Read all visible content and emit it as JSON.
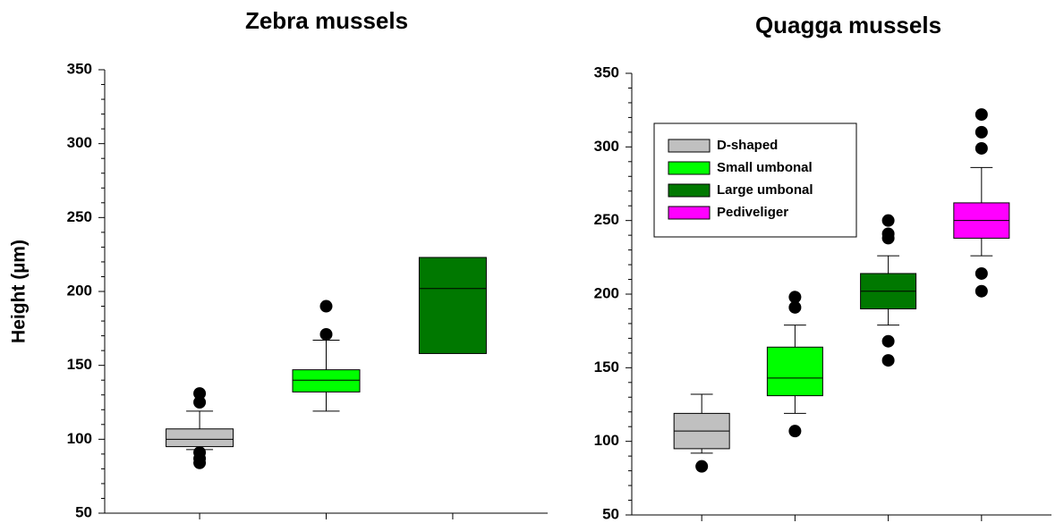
{
  "chart_data": [
    {
      "type": "box",
      "title": "Zebra mussels",
      "ylabel": "Height (µm)",
      "ylim": [
        50,
        350
      ],
      "yticks": [
        50,
        100,
        150,
        200,
        250,
        300,
        350
      ],
      "boxes": [
        {
          "color": "#c0c0c0",
          "low": 93,
          "q1": 95,
          "median": 100,
          "q3": 107,
          "high": 119,
          "outliers": [
            131,
            125,
            91,
            87,
            84
          ]
        },
        {
          "color": "#00ff00",
          "low": 119,
          "q1": 132,
          "median": 140,
          "q3": 147,
          "high": 167,
          "outliers": [
            190,
            171
          ]
        },
        {
          "color": "#007800",
          "low": null,
          "q1": 158,
          "median": 202,
          "q3": 223,
          "high": null,
          "outliers": []
        }
      ]
    },
    {
      "type": "box",
      "title": "Quagga mussels",
      "ylim": [
        50,
        350
      ],
      "yticks": [
        50,
        100,
        150,
        200,
        250,
        300,
        350
      ],
      "categories": [
        "D-shaped",
        "Small umbonal",
        "Large umbonal",
        "Pediveliger"
      ],
      "boxes": [
        {
          "color": "#c0c0c0",
          "low": 92,
          "q1": 95,
          "median": 107,
          "q3": 119,
          "high": 132,
          "outliers": [
            83
          ]
        },
        {
          "color": "#00ff00",
          "low": 119,
          "q1": 131,
          "median": 143,
          "q3": 164,
          "high": 179,
          "outliers": [
            198,
            191,
            107
          ]
        },
        {
          "color": "#007800",
          "low": 179,
          "q1": 190,
          "median": 202,
          "q3": 214,
          "high": 226,
          "outliers": [
            250,
            241,
            238,
            168,
            155
          ]
        },
        {
          "color": "#ff00ff",
          "low": 226,
          "q1": 238,
          "median": 250,
          "q3": 262,
          "high": 286,
          "outliers": [
            322,
            310,
            299,
            214,
            202
          ]
        }
      ]
    }
  ]
}
